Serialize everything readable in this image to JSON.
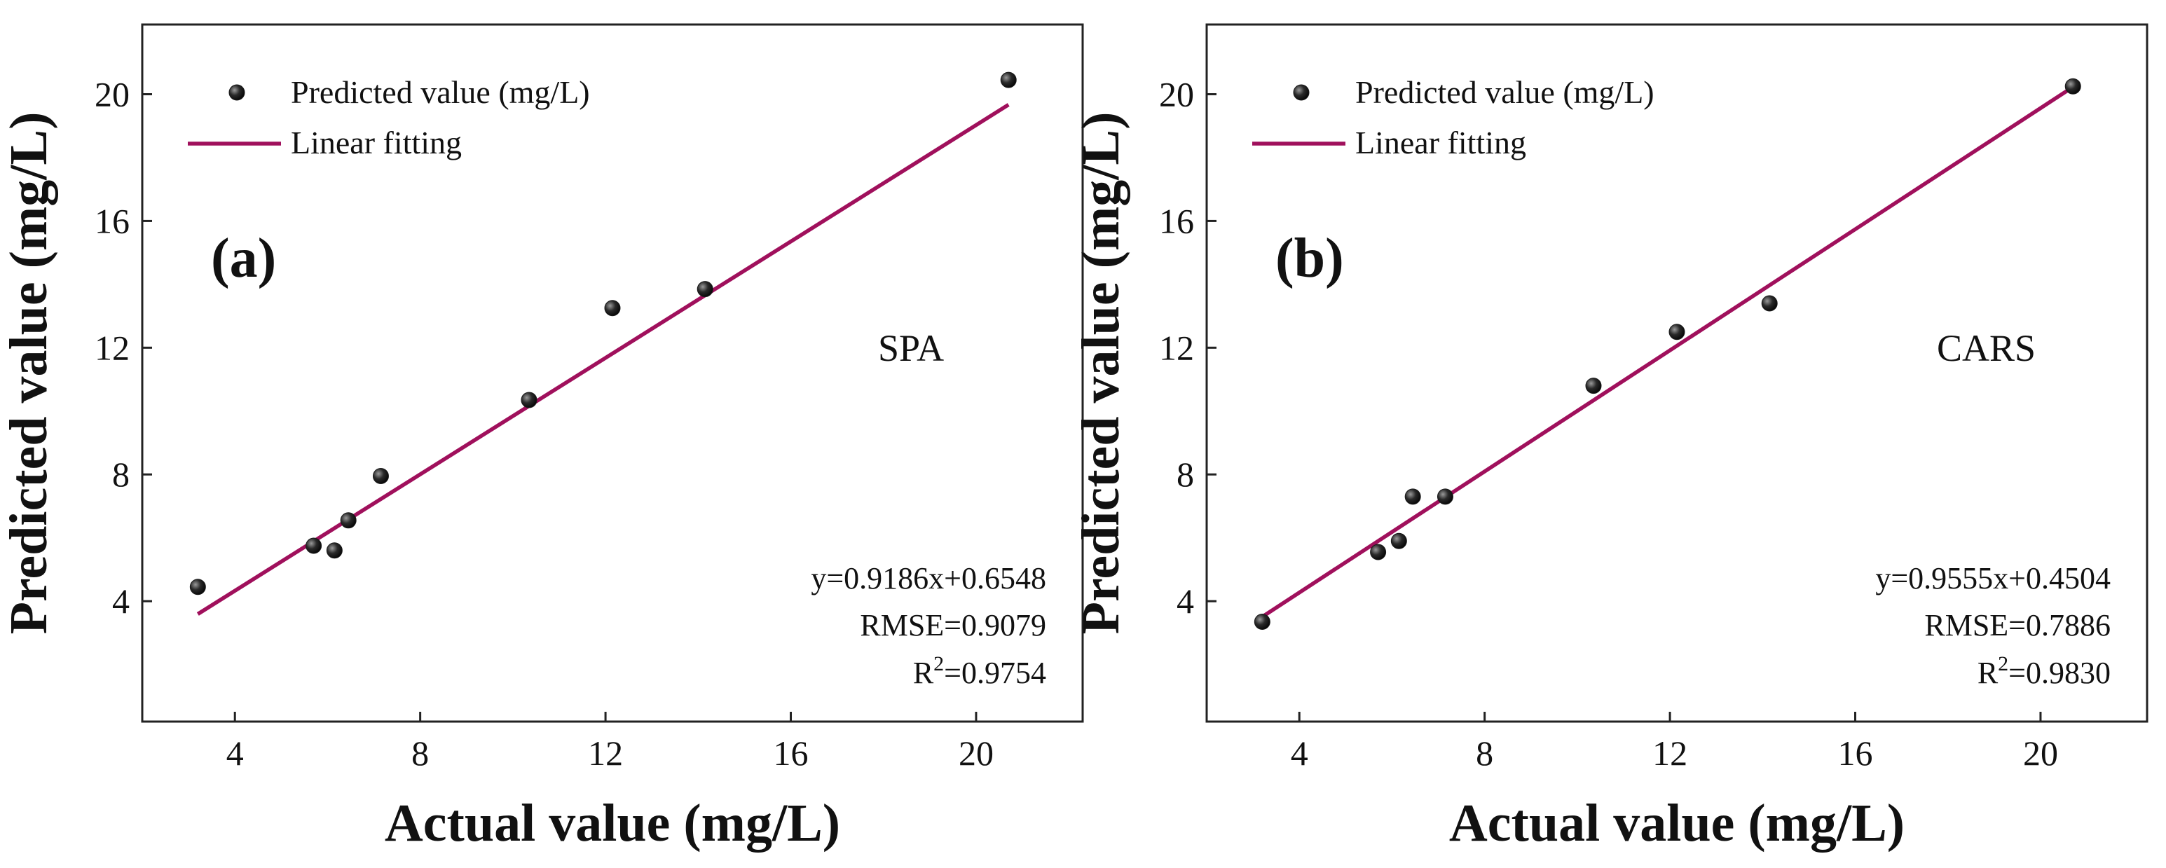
{
  "figure_title": "",
  "chart_data": [
    {
      "type": "scatter",
      "panel_label": "(a)",
      "method_label": "SPA",
      "xlabel": "Actual value (mg/L)",
      "ylabel": "Predicted value (mg/L)",
      "xlim": [
        2,
        22.3
      ],
      "ylim": [
        0.2,
        22.2
      ],
      "x_ticks": [
        4,
        8,
        12,
        16,
        20
      ],
      "y_ticks": [
        4,
        8,
        12,
        16,
        20
      ],
      "x_tick_labels": [
        "4",
        "8",
        "12",
        "16",
        "20"
      ],
      "y_tick_labels": [
        "4",
        "8",
        "12",
        "16",
        "20"
      ],
      "legend": {
        "position": "top-left",
        "points_label": "Predicted value (mg/L)",
        "line_label": "Linear fitting"
      },
      "points": [
        {
          "x": 3.2,
          "y": 4.45
        },
        {
          "x": 5.7,
          "y": 5.75
        },
        {
          "x": 6.15,
          "y": 5.6
        },
        {
          "x": 6.45,
          "y": 6.55
        },
        {
          "x": 7.15,
          "y": 7.95
        },
        {
          "x": 10.35,
          "y": 10.35
        },
        {
          "x": 12.15,
          "y": 13.25
        },
        {
          "x": 14.15,
          "y": 13.85
        },
        {
          "x": 20.7,
          "y": 20.45
        }
      ],
      "fit": {
        "slope": 0.9186,
        "intercept": 0.6548,
        "x_range": [
          3.2,
          20.7
        ]
      },
      "stats": {
        "equation": "y=0.9186x+0.6548",
        "rmse": "RMSE=0.9079",
        "r2_prefix": "R",
        "r2_sup": "2",
        "r2_value": "=0.9754"
      },
      "colors": {
        "line": "#a0105c",
        "point": "#1a1a1a"
      }
    },
    {
      "type": "scatter",
      "panel_label": "(b)",
      "method_label": "CARS",
      "xlabel": "Actual value (mg/L)",
      "ylabel": "Predicted value (mg/L)",
      "xlim": [
        2,
        22.3
      ],
      "ylim": [
        0.2,
        22.2
      ],
      "x_ticks": [
        4,
        8,
        12,
        16,
        20
      ],
      "y_ticks": [
        4,
        8,
        12,
        16,
        20
      ],
      "x_tick_labels": [
        "4",
        "8",
        "12",
        "16",
        "20"
      ],
      "y_tick_labels": [
        "4",
        "8",
        "12",
        "16",
        "20"
      ],
      "legend": {
        "position": "top-left",
        "points_label": "Predicted value (mg/L)",
        "line_label": "Linear fitting"
      },
      "points": [
        {
          "x": 3.2,
          "y": 3.35
        },
        {
          "x": 5.7,
          "y": 5.55
        },
        {
          "x": 6.15,
          "y": 5.9
        },
        {
          "x": 6.45,
          "y": 7.3
        },
        {
          "x": 7.15,
          "y": 7.3
        },
        {
          "x": 10.35,
          "y": 10.8
        },
        {
          "x": 12.15,
          "y": 12.5
        },
        {
          "x": 14.15,
          "y": 13.4
        },
        {
          "x": 20.7,
          "y": 20.25
        }
      ],
      "fit": {
        "slope": 0.9555,
        "intercept": 0.4504,
        "x_range": [
          3.2,
          20.7
        ]
      },
      "stats": {
        "equation": "y=0.9555x+0.4504",
        "rmse": "RMSE=0.7886",
        "r2_prefix": "R",
        "r2_sup": "2",
        "r2_value": "=0.9830"
      },
      "colors": {
        "line": "#a0105c",
        "point": "#1a1a1a"
      }
    }
  ]
}
